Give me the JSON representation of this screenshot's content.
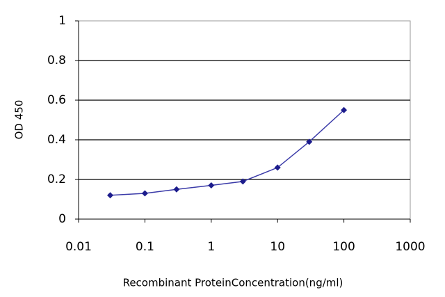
{
  "chart_data": {
    "type": "line",
    "x": [
      0.03,
      0.1,
      0.3,
      1,
      3,
      10,
      30,
      100
    ],
    "values": [
      0.12,
      0.13,
      0.15,
      0.17,
      0.19,
      0.26,
      0.39,
      0.55
    ],
    "color": "#3a3aa8",
    "marker_color": "#1c1c8c",
    "xscale": "log",
    "xlim": [
      0.01,
      1000
    ],
    "xticks": [
      0.01,
      0.1,
      1,
      10,
      100,
      1000
    ],
    "ylim": [
      0,
      1
    ],
    "yticks": [
      0,
      0.2,
      0.4,
      0.6,
      0.8,
      1
    ],
    "grid": true,
    "xlabel": "Recombinant ProteinConcentration(ng/ml)",
    "ylabel": "OD 450"
  }
}
